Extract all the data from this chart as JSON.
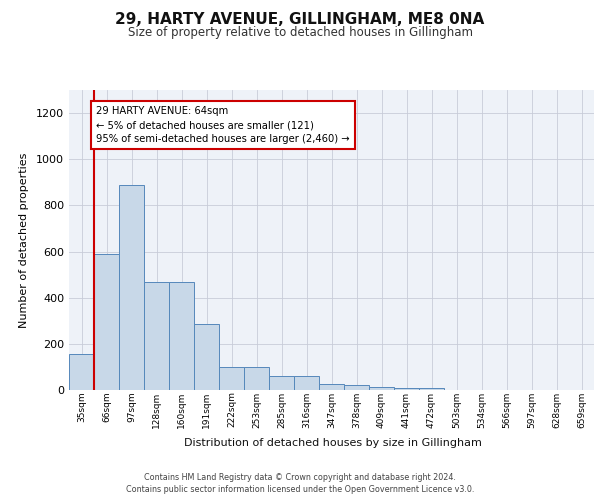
{
  "title1": "29, HARTY AVENUE, GILLINGHAM, ME8 0NA",
  "title2": "Size of property relative to detached houses in Gillingham",
  "xlabel": "Distribution of detached houses by size in Gillingham",
  "ylabel": "Number of detached properties",
  "categories": [
    "35sqm",
    "66sqm",
    "97sqm",
    "128sqm",
    "160sqm",
    "191sqm",
    "222sqm",
    "253sqm",
    "285sqm",
    "316sqm",
    "347sqm",
    "378sqm",
    "409sqm",
    "441sqm",
    "472sqm",
    "503sqm",
    "534sqm",
    "566sqm",
    "597sqm",
    "628sqm",
    "659sqm"
  ],
  "values": [
    155,
    590,
    890,
    470,
    470,
    285,
    100,
    100,
    60,
    60,
    25,
    20,
    15,
    10,
    10,
    0,
    0,
    0,
    0,
    0,
    0
  ],
  "bar_color": "#c8d8e8",
  "bar_edge_color": "#5588bb",
  "annotation_text": "29 HARTY AVENUE: 64sqm\n← 5% of detached houses are smaller (121)\n95% of semi-detached houses are larger (2,460) →",
  "annotation_box_color": "#ffffff",
  "annotation_box_edge_color": "#cc0000",
  "vline_color": "#cc0000",
  "vline_x_index": 1,
  "ylim": [
    0,
    1300
  ],
  "yticks": [
    0,
    200,
    400,
    600,
    800,
    1000,
    1200
  ],
  "footer1": "Contains HM Land Registry data © Crown copyright and database right 2024.",
  "footer2": "Contains public sector information licensed under the Open Government Licence v3.0.",
  "background_color": "#eef2f8",
  "grid_color": "#c8ccd8"
}
